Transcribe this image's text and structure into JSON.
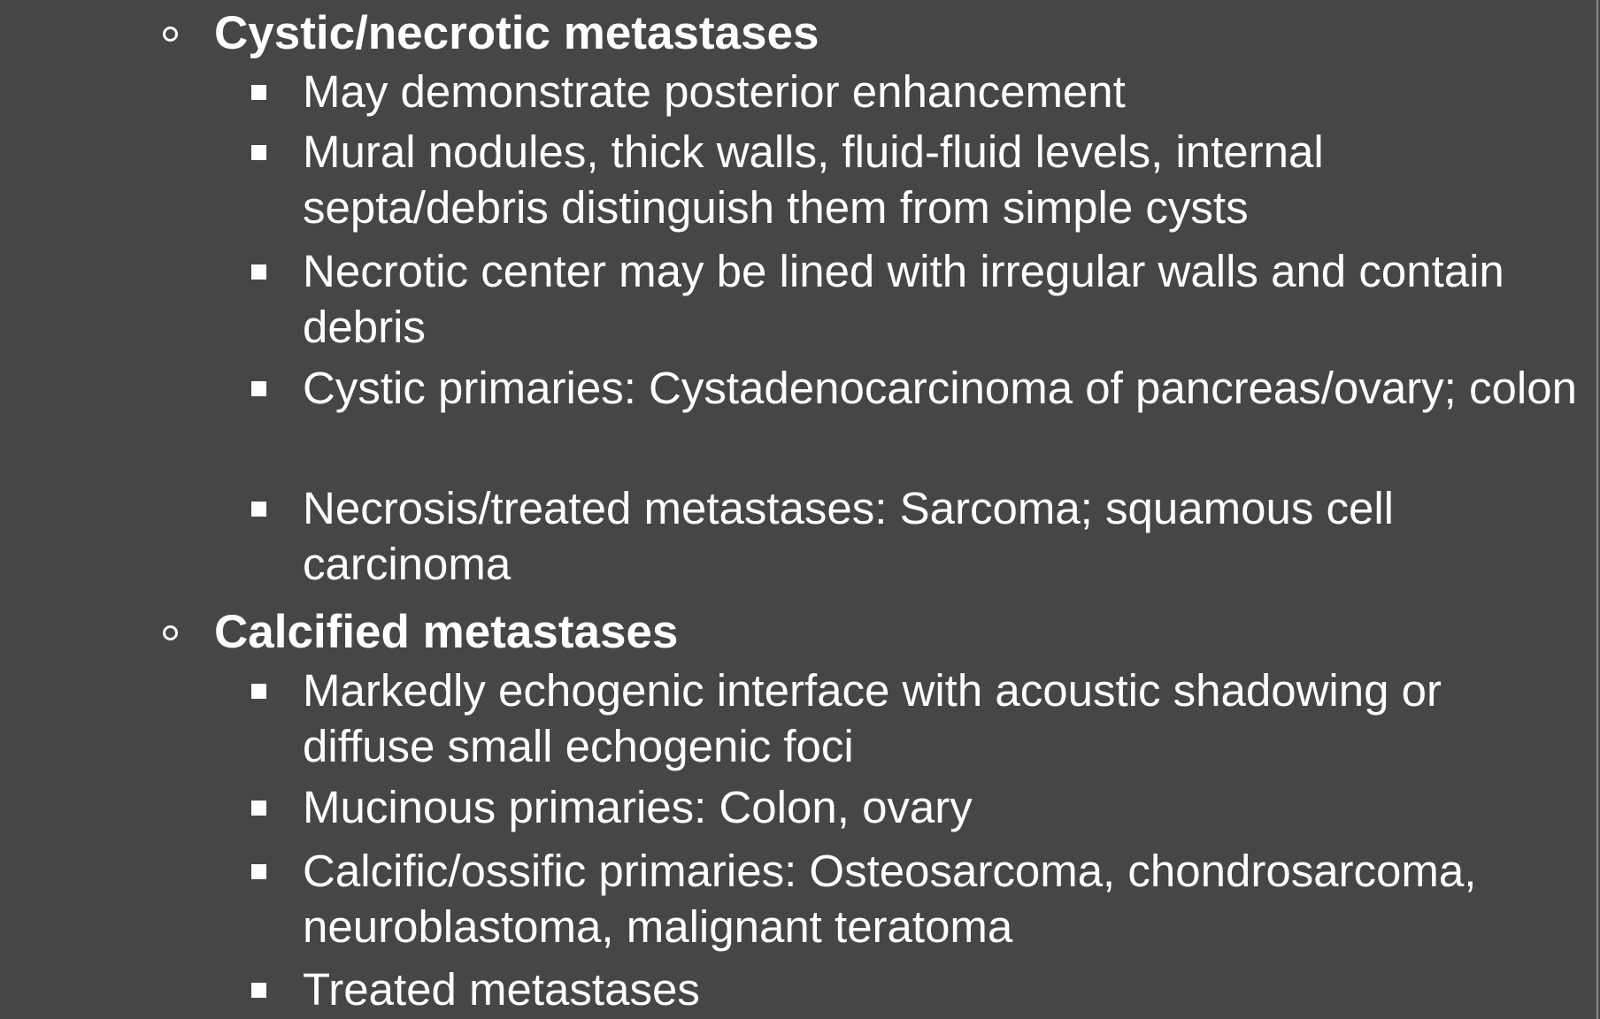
{
  "sections": [
    {
      "heading": "Cystic/necrotic metastases",
      "items": [
        "May demonstrate posterior enhancement",
        "Mural nodules, thick walls, fluid-fluid levels, internal septa/debris distinguish them from simple cysts",
        "Necrotic center may be lined with irregular walls and contain debris",
        "Cystic primaries: Cystadenocarcinoma of pancreas/ovary; colon",
        "Necrosis/treated metastases: Sarcoma; squamous cell carcinoma"
      ]
    },
    {
      "heading": "Calcified metastases",
      "items": [
        "Markedly echogenic interface with acoustic shadowing or diffuse small echogenic foci",
        "Mucinous primaries: Colon, ovary",
        "Calcific/ossific primaries: Osteosarcoma, chondrosarcoma, neuroblastoma, malignant teratoma",
        "Treated metastases"
      ]
    }
  ]
}
